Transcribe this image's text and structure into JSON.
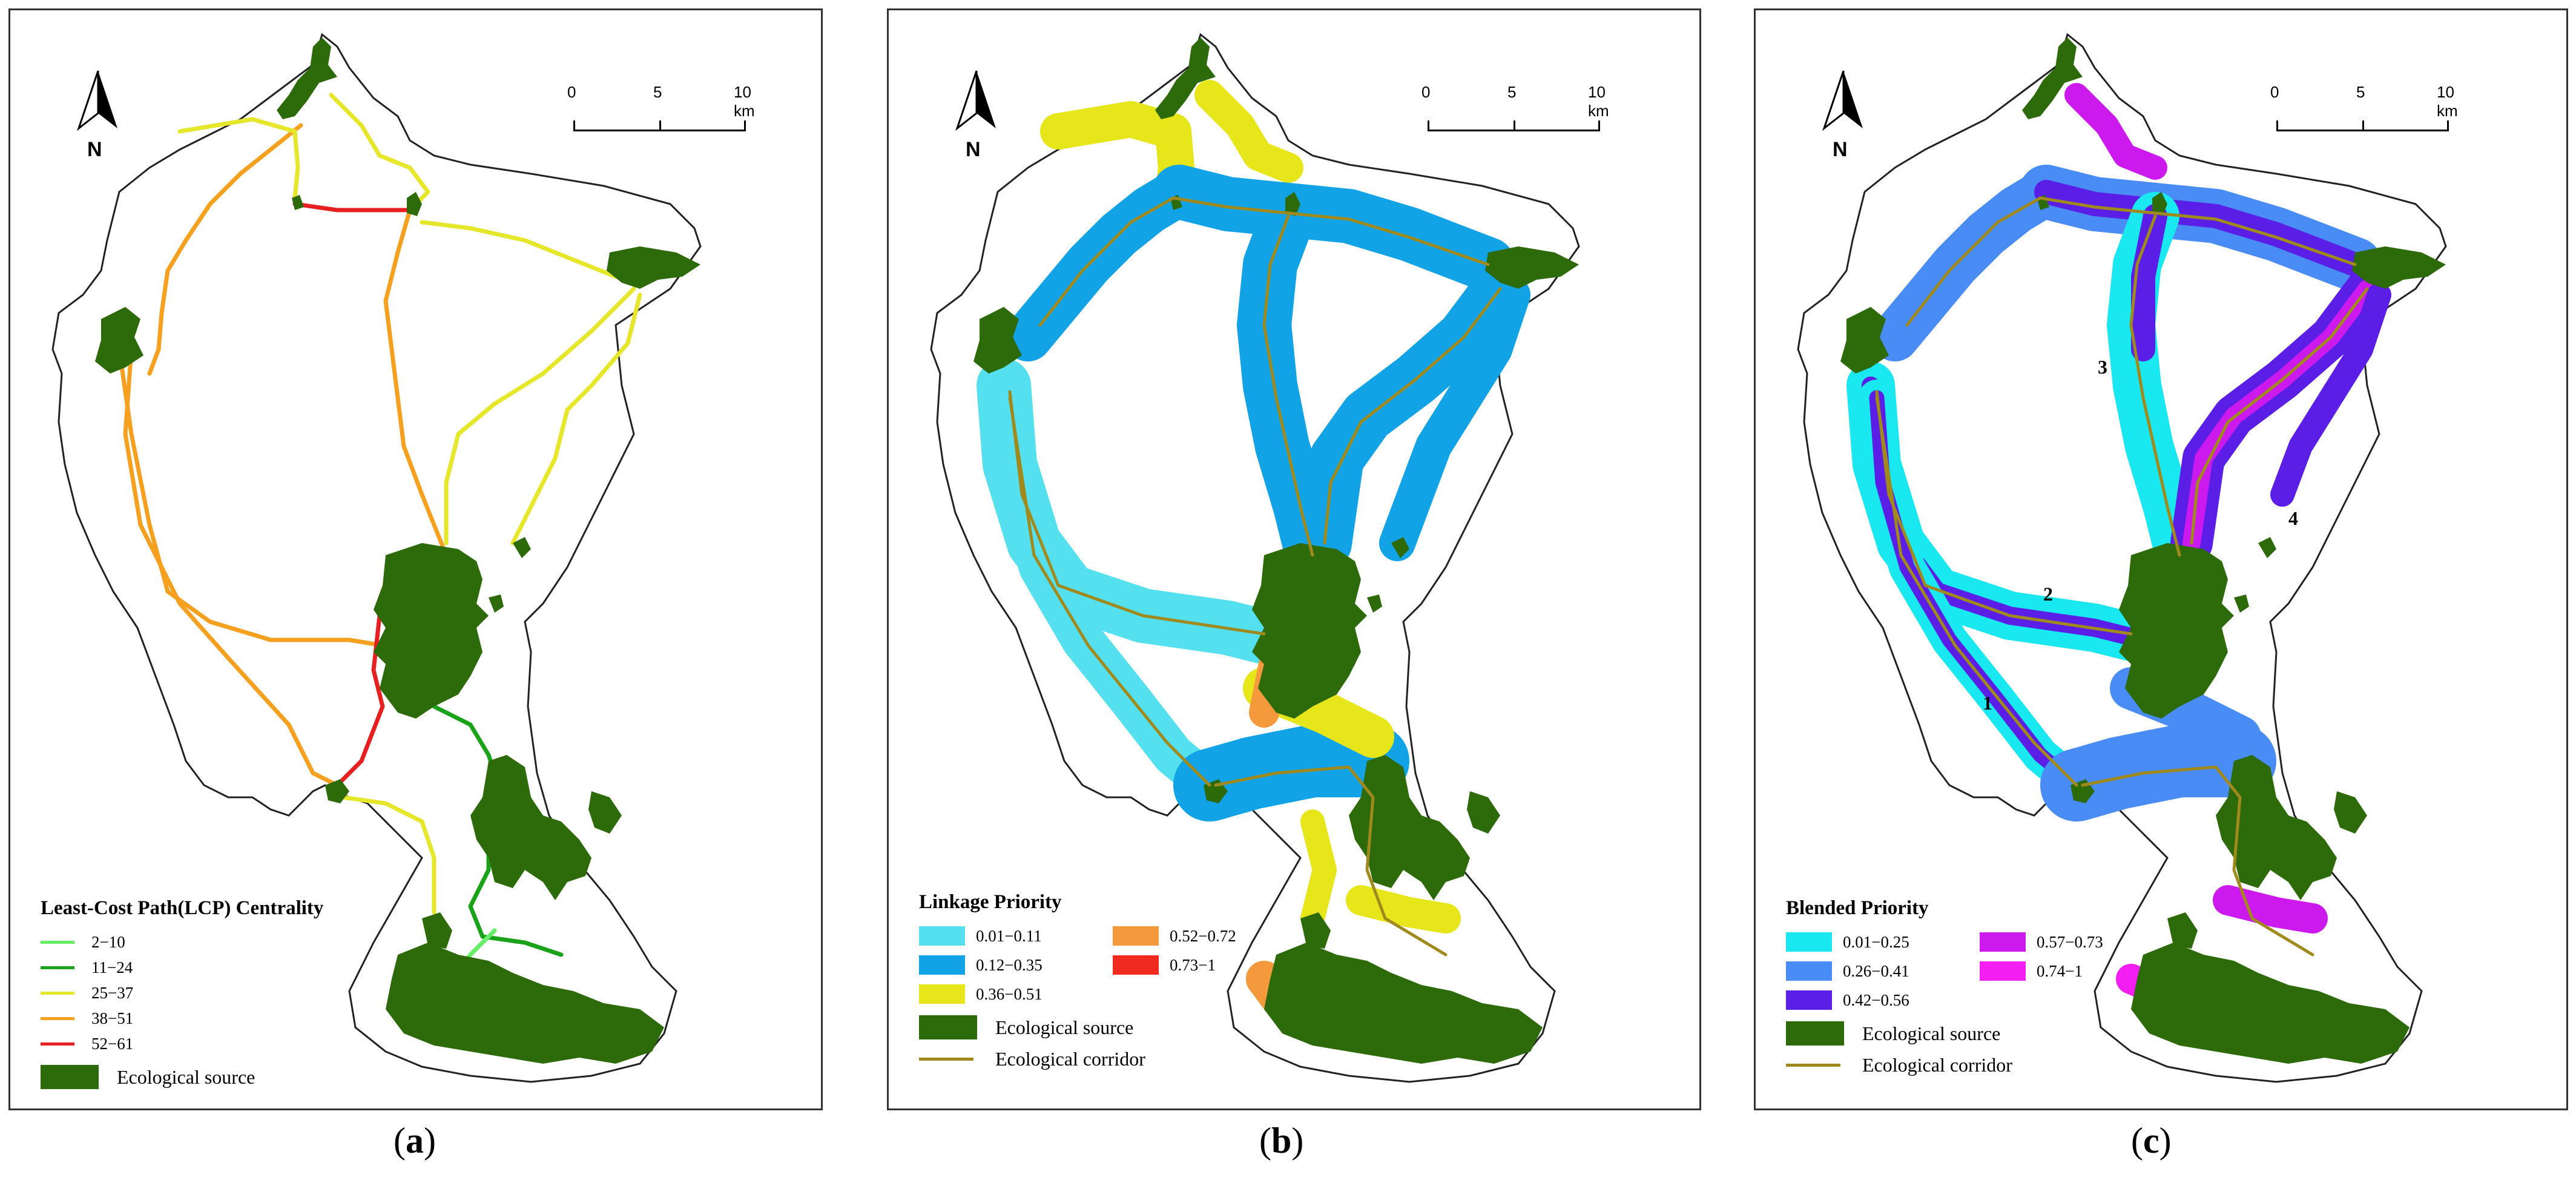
{
  "north_label": "N",
  "scale": {
    "t0": "0",
    "t5": "5",
    "t10": "10 km"
  },
  "colors": {
    "source": "#2d6a0a",
    "corridor": "#a08a1e",
    "boundary": "#222222"
  },
  "panel_a": {
    "legend_title": "Least-Cost Path(LCP) Centrality",
    "classes": [
      {
        "label": "2−10",
        "color": "#66ee66"
      },
      {
        "label": "11−24",
        "color": "#1aa31a"
      },
      {
        "label": "25−37",
        "color": "#e6e62a"
      },
      {
        "label": "38−51",
        "color": "#f5a01e"
      },
      {
        "label": "52−61",
        "color": "#e62020"
      }
    ],
    "source_label": "Ecological source",
    "caption_open": "(",
    "caption_letter": "a",
    "caption_close": ")"
  },
  "panel_b": {
    "legend_title": "Linkage Priority",
    "classes": [
      {
        "label": "0.01−0.11",
        "color": "#55e0f0"
      },
      {
        "label": "0.52−0.72",
        "color": "#f49a3c"
      },
      {
        "label": "0.12−0.35",
        "color": "#12a2e6"
      },
      {
        "label": "0.73−1",
        "color": "#f02a1e"
      },
      {
        "label": "0.36−0.51",
        "color": "#e6e61a"
      }
    ],
    "source_label": "Ecological source",
    "corridor_label": "Ecological corridor",
    "caption_open": "(",
    "caption_letter": "b",
    "caption_close": ")"
  },
  "panel_c": {
    "legend_title": "Blended Priority",
    "classes": [
      {
        "label": "0.01−0.25",
        "color": "#1ae8f0"
      },
      {
        "label": "0.57−0.73",
        "color": "#cc1aee"
      },
      {
        "label": "0.26−0.41",
        "color": "#4a8cf5"
      },
      {
        "label": "0.74−1",
        "color": "#f21ef2"
      },
      {
        "label": "0.42−0.56",
        "color": "#5a1ee6"
      }
    ],
    "source_label": "Ecological source",
    "corridor_label": "Ecological corridor",
    "route_labels": [
      "1",
      "2",
      "3",
      "4"
    ],
    "caption_open": "(",
    "caption_letter": "c",
    "caption_close": ")"
  }
}
